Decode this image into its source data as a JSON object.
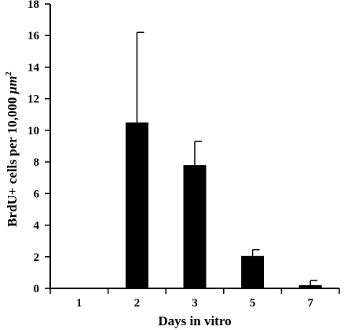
{
  "chart_data": {
    "type": "bar",
    "title": "",
    "xlabel": "Days in vitro",
    "ylabel_parts": [
      "BrdU+ cells per 10,000 ",
      "μm",
      "2"
    ],
    "categories": [
      "1",
      "2",
      "3",
      "5",
      "7"
    ],
    "values": [
      0,
      10.5,
      7.8,
      2.05,
      0.2
    ],
    "errors": [
      0,
      5.7,
      1.5,
      0.4,
      0.3
    ],
    "ylim": [
      0,
      18
    ],
    "yticks": [
      "0",
      "2",
      "4",
      "6",
      "8",
      "10",
      "12",
      "14",
      "16",
      "18"
    ],
    "grid": false,
    "legend": "none",
    "bar_color": "#000000"
  }
}
